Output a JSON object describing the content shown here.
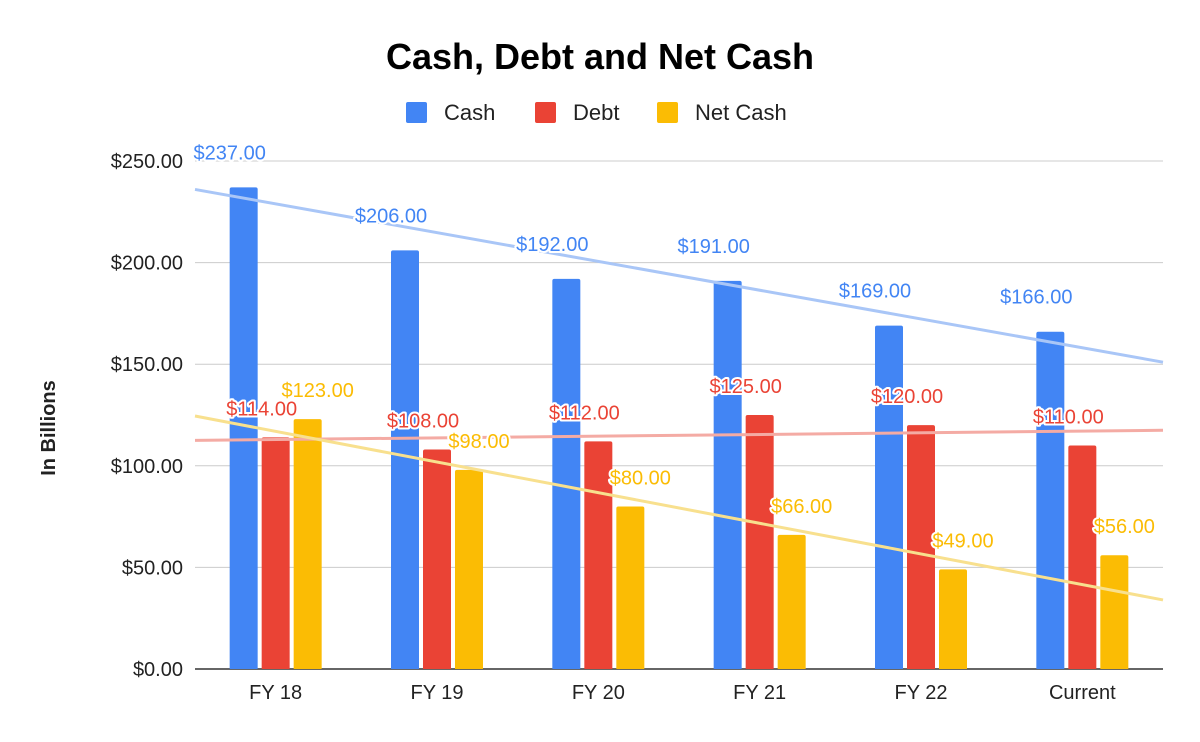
{
  "chart_data": {
    "type": "bar",
    "title": "Cash, Debt and Net Cash",
    "ylabel": "In Billions",
    "xlabel": "",
    "categories": [
      "FY 18",
      "FY 19",
      "FY 20",
      "FY 21",
      "FY 22",
      "Current"
    ],
    "series": [
      {
        "name": "Cash",
        "color": "#4285F4",
        "values": [
          237,
          206,
          192,
          191,
          169,
          166
        ],
        "labels": [
          "$237.00",
          "$206.00",
          "$192.00",
          "$191.00",
          "$169.00",
          "$166.00"
        ]
      },
      {
        "name": "Debt",
        "color": "#EA4335",
        "values": [
          114,
          108,
          112,
          125,
          120,
          110
        ],
        "labels": [
          "$114.00",
          "$108.00",
          "$112.00",
          "$125.00",
          "$120.00",
          "$110.00"
        ]
      },
      {
        "name": "Net Cash",
        "color": "#FBBC04",
        "values": [
          123,
          98,
          80,
          66,
          49,
          56
        ],
        "labels": [
          "$123.00",
          "$98.00",
          "$80.00",
          "$66.00",
          "$49.00",
          "$56.00"
        ]
      }
    ],
    "trendlines": [
      {
        "series": "Cash",
        "color": "#A9C6F7",
        "start": 236,
        "end": 151
      },
      {
        "series": "Debt",
        "color": "#F4ABA4",
        "start": 112.5,
        "end": 117.5
      },
      {
        "series": "Net Cash",
        "color": "#F8E08E",
        "start": 124.5,
        "end": 34
      }
    ],
    "ylim": [
      0,
      250
    ],
    "yticks": [
      0,
      50,
      100,
      150,
      200,
      250
    ],
    "ytick_labels": [
      "$0.00",
      "$50.00",
      "$100.00",
      "$150.00",
      "$200.00",
      "$250.00"
    ],
    "grid": true,
    "legend_position": "top"
  }
}
